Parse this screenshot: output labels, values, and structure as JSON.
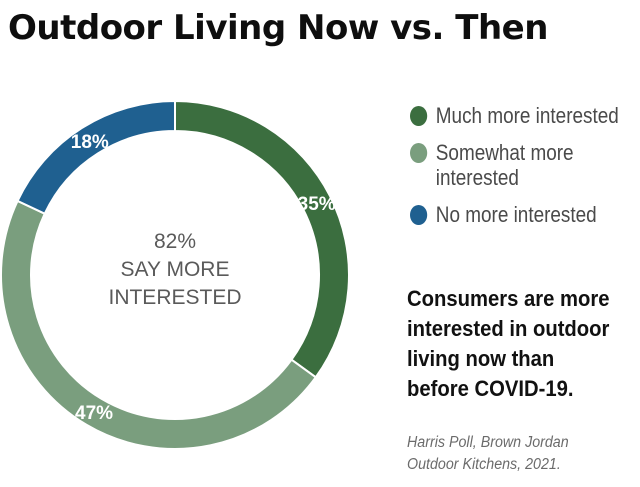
{
  "title": "Outdoor Living Now vs. Then",
  "center_label": {
    "line1": "82%",
    "line2": "SAY MORE",
    "line3": "INTERESTED"
  },
  "legend": [
    {
      "label_line1": "Much more interested",
      "label_line2": "",
      "color": "#3b6e3f"
    },
    {
      "label_line1": "Somewhat more",
      "label_line2": "interested",
      "color": "#7a9e7e"
    },
    {
      "label_line1": "No more interested",
      "label_line2": "",
      "color": "#1f6090"
    }
  ],
  "caption": {
    "line1": "Consumers are more",
    "line2": "interested in outdoor",
    "line3": "living now than",
    "line4": "before COVID-19."
  },
  "source": {
    "line1": "Harris Poll, Brown Jordan",
    "line2": "Outdoor Kitchens, 2021."
  },
  "chart_data": {
    "type": "pie",
    "variant": "donut",
    "title": "Outdoor Living Now vs. Then",
    "categories": [
      "Much more interested",
      "Somewhat more interested",
      "No more interested"
    ],
    "values": [
      35,
      47,
      18
    ],
    "value_labels": [
      "35%",
      "47%",
      "18%"
    ],
    "colors": [
      "#3b6e3f",
      "#7a9e7e",
      "#1f6090"
    ],
    "legend_position": "right"
  }
}
